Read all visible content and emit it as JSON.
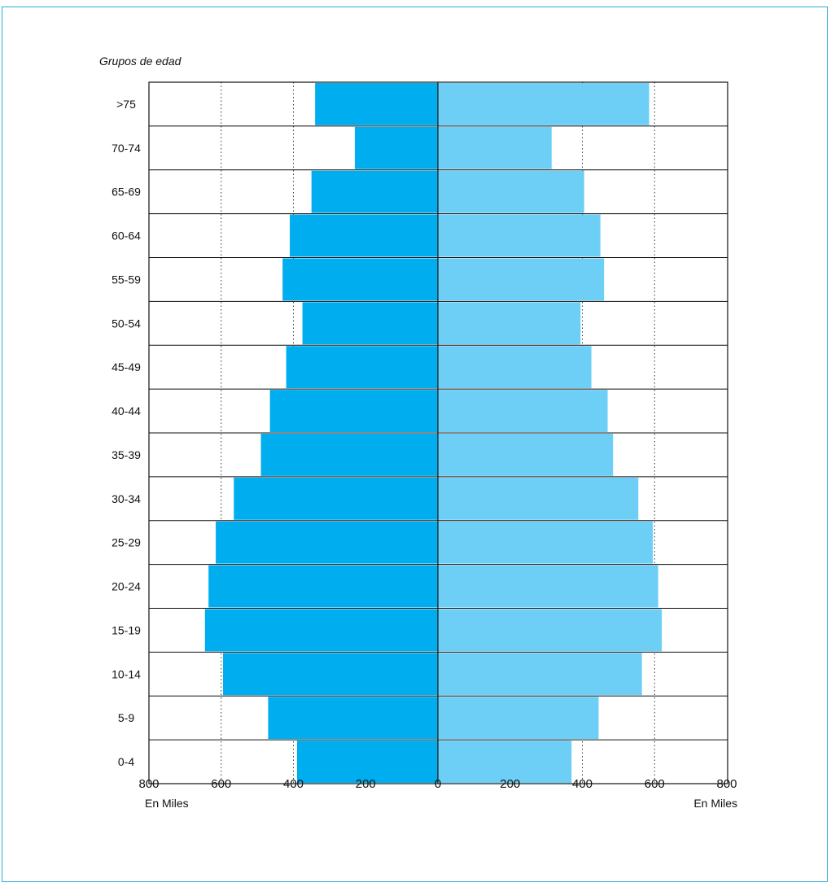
{
  "chart_data": {
    "type": "bar",
    "orientation": "horizontal-population-pyramid",
    "title": "Grupos de edad",
    "categories": [
      ">75",
      "70-74",
      "65-69",
      "60-64",
      "55-59",
      "50-54",
      "45-49",
      "40-44",
      "35-39",
      "30-34",
      "25-29",
      "20-24",
      "15-19",
      "10-14",
      "5-9",
      "0-4"
    ],
    "series": [
      {
        "side": "left",
        "color": "#00aeef",
        "values": [
          340,
          230,
          350,
          410,
          430,
          375,
          420,
          465,
          490,
          565,
          615,
          635,
          645,
          595,
          470,
          390
        ]
      },
      {
        "side": "right",
        "color": "#6dcff6",
        "values": [
          585,
          315,
          405,
          450,
          460,
          395,
          425,
          470,
          485,
          555,
          595,
          610,
          620,
          565,
          445,
          370
        ]
      }
    ],
    "xlim": [
      0,
      800
    ],
    "left_ticks": [
      "800",
      "600",
      "400",
      "200"
    ],
    "center_tick": "0",
    "right_ticks": [
      "200",
      "400",
      "600",
      "800"
    ],
    "xlabel_left": "En Miles",
    "xlabel_right": "En Miles",
    "grid": "dotted vertical at 400 and 600"
  }
}
